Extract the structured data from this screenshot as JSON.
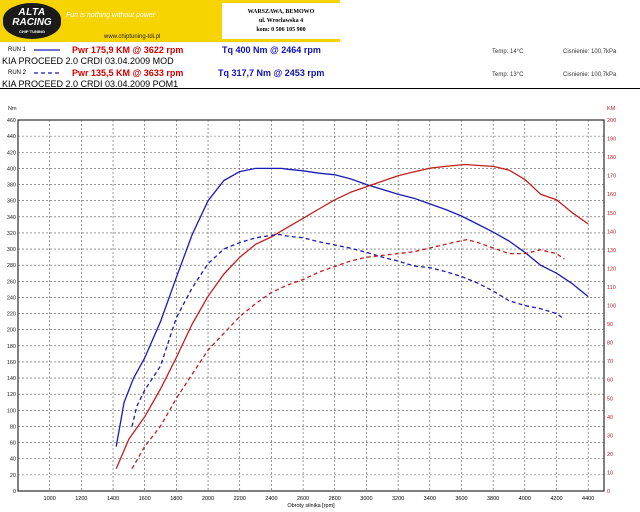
{
  "header": {
    "logo_line1": "ALTA",
    "logo_line2": "RACING",
    "logo_line3": "CHIP TUNING",
    "tagline": "Fun is nothing without power",
    "url": "www.chiptuning-tdi.pl",
    "address_line1": "WARSZAWA, BEMOWO",
    "address_line2": "ul. Wrocławska 4",
    "address_line3": "kom: 0 506 105 900"
  },
  "runs": [
    {
      "label": "RUN 1",
      "label_color": "#d40000",
      "power": "Pwr 175,9 KM @ 3622 rpm",
      "torque": "Tq 400 Nm @ 2464 rpm",
      "description": "KIA PROCEED  2.0 CRDI  03.04.2009  MOD",
      "temp": "Temp: 14°C",
      "pressure": "Cisnienie: 100,7kPa",
      "line_style": "solid"
    },
    {
      "label": "RUN 2",
      "label_color": "#2a9a2a",
      "power": "Pwr 135,5 KM @ 3633 rpm",
      "torque": "Tq 317,7 Nm @ 2453 rpm",
      "description": "KIA PROCEED  2.0 CRDI  03.04.2009 POM1",
      "temp": "Temp: 13°C",
      "pressure": "Cisnienie: 100,7kPa",
      "line_style": "dashed"
    }
  ],
  "colors": {
    "torque": "#1a1ab4",
    "power": "#c41e1e",
    "left_axis": "#1a1a1a",
    "right_axis": "#c41e1e",
    "grid": "#555555"
  },
  "chart_data": {
    "type": "line",
    "xlabel": "Obroty silnika [rpm]",
    "ylabel_left": "Nm",
    "ylabel_right": "KM",
    "xlim": [
      800,
      4500
    ],
    "ylim_left": [
      0,
      460
    ],
    "ylim_right": [
      0,
      200
    ],
    "x_ticks": [
      1000,
      1200,
      1400,
      1600,
      1800,
      2000,
      2200,
      2400,
      2600,
      2800,
      3000,
      3200,
      3400,
      3600,
      3800,
      4000,
      4200,
      4400
    ],
    "y_ticks_left": [
      0,
      20,
      40,
      60,
      80,
      100,
      120,
      140,
      160,
      180,
      200,
      220,
      240,
      260,
      280,
      300,
      320,
      340,
      360,
      380,
      400,
      420,
      440,
      460
    ],
    "y_ticks_right": [
      0,
      10,
      20,
      30,
      40,
      50,
      60,
      70,
      80,
      90,
      100,
      110,
      120,
      130,
      140,
      150,
      160,
      170,
      180,
      190,
      200
    ],
    "grid": true,
    "series": [
      {
        "name": "RUN 1",
        "quantity": "torque",
        "axis": "left",
        "style": "solid",
        "x": [
          1420,
          1470,
          1530,
          1600,
          1700,
          1800,
          1900,
          2000,
          2100,
          2200,
          2300,
          2400,
          2464,
          2500,
          2600,
          2700,
          2800,
          2900,
          3000,
          3100,
          3200,
          3300,
          3400,
          3500,
          3600,
          3700,
          3800,
          3900,
          4000,
          4100,
          4200,
          4300,
          4400
        ],
        "y": [
          55,
          110,
          140,
          165,
          210,
          265,
          318,
          360,
          385,
          396,
          400,
          400,
          400,
          399,
          397,
          394,
          392,
          387,
          380,
          374,
          368,
          363,
          356,
          349,
          341,
          331,
          321,
          310,
          296,
          280,
          270,
          257,
          241
        ]
      },
      {
        "name": "RUN 1",
        "quantity": "power",
        "axis": "right",
        "style": "solid",
        "x": [
          1420,
          1500,
          1600,
          1700,
          1800,
          1900,
          2000,
          2100,
          2200,
          2300,
          2400,
          2500,
          2600,
          2700,
          2800,
          2900,
          3000,
          3100,
          3200,
          3300,
          3400,
          3500,
          3622,
          3700,
          3800,
          3900,
          4000,
          4100,
          4200,
          4300,
          4400
        ],
        "y": [
          12,
          28,
          40,
          55,
          72,
          90,
          105,
          117,
          126,
          133,
          137,
          142,
          147,
          152,
          157,
          161,
          164,
          167,
          170,
          172,
          174,
          175,
          176,
          175.5,
          175,
          173,
          168,
          160,
          157,
          150,
          144
        ]
      },
      {
        "name": "RUN 2",
        "quantity": "torque",
        "axis": "left",
        "style": "dashed",
        "x": [
          1520,
          1550,
          1600,
          1700,
          1800,
          1900,
          2000,
          2100,
          2200,
          2300,
          2400,
          2453,
          2500,
          2600,
          2700,
          2800,
          2900,
          3000,
          3100,
          3200,
          3300,
          3400,
          3500,
          3600,
          3700,
          3800,
          3900,
          4000,
          4100,
          4200,
          4250
        ],
        "y": [
          80,
          105,
          125,
          155,
          215,
          252,
          282,
          300,
          308,
          314,
          317,
          318,
          316,
          314,
          309,
          305,
          301,
          296,
          290,
          285,
          279,
          277,
          272,
          266,
          258,
          248,
          236,
          230,
          226,
          220,
          213
        ]
      },
      {
        "name": "RUN 2",
        "quantity": "power",
        "axis": "right",
        "style": "dashed",
        "x": [
          1520,
          1600,
          1700,
          1800,
          1900,
          2000,
          2100,
          2200,
          2300,
          2400,
          2500,
          2600,
          2700,
          2800,
          2900,
          3000,
          3100,
          3200,
          3300,
          3400,
          3500,
          3633,
          3700,
          3800,
          3900,
          4000,
          4100,
          4200,
          4250
        ],
        "y": [
          12,
          24,
          35,
          50,
          63,
          76,
          85,
          94,
          101,
          107,
          111,
          114,
          118,
          121,
          124,
          126,
          127,
          128,
          129,
          131,
          133,
          135.5,
          134,
          131,
          128,
          128,
          130,
          128,
          125
        ]
      }
    ]
  }
}
